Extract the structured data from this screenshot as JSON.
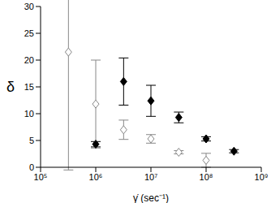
{
  "chart_data": {
    "type": "scatter",
    "x_label": "γ̇ (sec⁻¹)",
    "y_label": "δ",
    "log": "x",
    "xlim": [
      100000,
      1000000000
    ],
    "xticks": [
      {
        "value": 100000,
        "label": "10⁵"
      },
      {
        "value": 1000000,
        "label": "10⁶"
      },
      {
        "value": 10000000,
        "label": "10⁷"
      },
      {
        "value": 100000000,
        "label": "10⁸"
      },
      {
        "value": 1000000000,
        "label": "10⁹"
      }
    ],
    "ylim": [
      0,
      30
    ],
    "yticks": [
      0,
      5,
      10,
      15,
      20,
      25,
      30
    ],
    "series": [
      {
        "color": "#000000",
        "marker": "diamond",
        "x": [
          1000000,
          3200000,
          10000000,
          32000000,
          100000000,
          320000000
        ],
        "values": [
          4.3,
          16.0,
          12.4,
          9.3,
          5.3,
          3.0
        ],
        "errors": [
          0.5,
          4.4,
          2.9,
          1.0,
          0.4,
          0.3
        ]
      },
      {
        "color": "#888888",
        "marker": "open_diamond",
        "x": [
          320000,
          1000000,
          3200000,
          10000000,
          32000000,
          100000000
        ],
        "values": [
          21.5,
          11.8,
          7.0,
          5.3,
          2.8,
          1.3
        ],
        "errors": [
          22,
          8.2,
          1.8,
          0.8,
          0.3,
          1.3
        ]
      }
    ]
  }
}
